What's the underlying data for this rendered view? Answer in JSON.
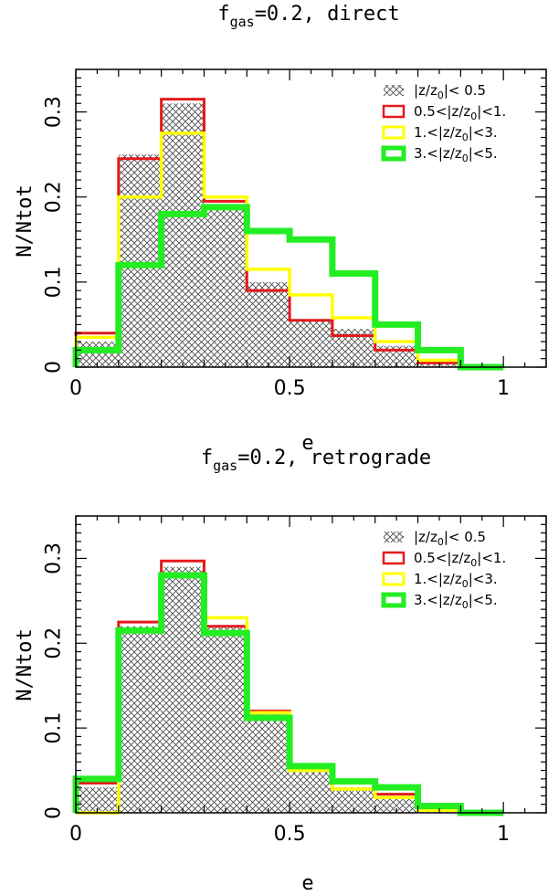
{
  "chart_data": [
    {
      "type": "histogram",
      "title": {
        "prefix": "f",
        "sub": "gas",
        "suffix": "=0.2, direct"
      },
      "xlabel": "e",
      "ylabel": "N/Ntot",
      "xlim": [
        0,
        1.1
      ],
      "ylim": [
        0,
        0.35
      ],
      "xticks": [
        {
          "value": 0,
          "label": "0"
        },
        {
          "value": 0.5,
          "label": "0.5"
        },
        {
          "value": 1,
          "label": "1"
        }
      ],
      "yticks": [
        {
          "value": 0,
          "label": "0"
        },
        {
          "value": 0.1,
          "label": "0.1"
        },
        {
          "value": 0.2,
          "label": "0.2"
        },
        {
          "value": 0.3,
          "label": "0.3"
        }
      ],
      "bin_edges": [
        0,
        0.1,
        0.2,
        0.3,
        0.4,
        0.5,
        0.6,
        0.7,
        0.8,
        0.9,
        1.0
      ],
      "series": [
        {
          "name": "|z/z0|< 0.5",
          "style": "hatched",
          "color": "#555555",
          "values": [
            0.03,
            0.25,
            0.31,
            0.19,
            0.1,
            0.055,
            0.045,
            0.025,
            0.005,
            0.0
          ]
        },
        {
          "name": "0.5<|z/z0|<1.",
          "style": "step",
          "color": "#e31a1c",
          "values": [
            0.04,
            0.245,
            0.315,
            0.195,
            0.09,
            0.055,
            0.037,
            0.02,
            0.005,
            0.0
          ]
        },
        {
          "name": "1.<|z/z0|<3.",
          "style": "step",
          "color": "#ffff00",
          "values": [
            0.035,
            0.2,
            0.275,
            0.2,
            0.115,
            0.085,
            0.058,
            0.03,
            0.008,
            0.0
          ]
        },
        {
          "name": "3.<|z/z0|<5.",
          "style": "step",
          "color": "#22ee22",
          "values": [
            0.02,
            0.12,
            0.18,
            0.188,
            0.16,
            0.15,
            0.11,
            0.05,
            0.02,
            0.0
          ]
        }
      ],
      "legend": {
        "position": "top-right",
        "items": [
          {
            "pre": "|z/z",
            "sub": "0",
            "post": "|< 0.5"
          },
          {
            "pre": "0.5<|z/z",
            "sub": "0",
            "post": "|<1."
          },
          {
            "pre": "1.<|z/z",
            "sub": "0",
            "post": "|<3."
          },
          {
            "pre": "3.<|z/z",
            "sub": "0",
            "post": "|<5."
          }
        ]
      }
    },
    {
      "type": "histogram",
      "title": {
        "prefix": "f",
        "sub": "gas",
        "suffix": "=0.2, retrograde"
      },
      "xlabel": "e",
      "ylabel": "N/Ntot",
      "xlim": [
        0,
        1.1
      ],
      "ylim": [
        0,
        0.35
      ],
      "xticks": [
        {
          "value": 0,
          "label": "0"
        },
        {
          "value": 0.5,
          "label": "0.5"
        },
        {
          "value": 1,
          "label": "1"
        }
      ],
      "yticks": [
        {
          "value": 0,
          "label": "0"
        },
        {
          "value": 0.1,
          "label": "0.1"
        },
        {
          "value": 0.2,
          "label": "0.2"
        },
        {
          "value": 0.3,
          "label": "0.3"
        }
      ],
      "bin_edges": [
        0,
        0.1,
        0.2,
        0.3,
        0.4,
        0.5,
        0.6,
        0.7,
        0.8,
        0.9,
        1.0
      ],
      "series": [
        {
          "name": "|z/z0|< 0.5",
          "style": "hatched",
          "color": "#555555",
          "values": [
            0.03,
            0.22,
            0.29,
            0.22,
            0.12,
            0.05,
            0.03,
            0.02,
            0.005,
            0.0
          ]
        },
        {
          "name": "0.5<|z/z0|<1.",
          "style": "step",
          "color": "#e31a1c",
          "values": [
            0.035,
            0.225,
            0.297,
            0.22,
            0.12,
            0.055,
            0.035,
            0.022,
            0.005,
            0.0
          ]
        },
        {
          "name": "1.<|z/z0|<3.",
          "style": "step",
          "color": "#ffff00",
          "values": [
            0.0,
            0.215,
            0.28,
            0.23,
            0.118,
            0.05,
            0.028,
            0.018,
            0.003,
            0.0
          ]
        },
        {
          "name": "3.<|z/z0|<5.",
          "style": "step",
          "color": "#22ee22",
          "values": [
            0.04,
            0.215,
            0.28,
            0.212,
            0.112,
            0.055,
            0.037,
            0.03,
            0.008,
            0.0
          ]
        }
      ],
      "legend": {
        "position": "top-right",
        "items": [
          {
            "pre": "|z/z",
            "sub": "0",
            "post": "|< 0.5"
          },
          {
            "pre": "0.5<|z/z",
            "sub": "0",
            "post": "|<1."
          },
          {
            "pre": "1.<|z/z",
            "sub": "0",
            "post": "|<3."
          },
          {
            "pre": "3.<|z/z",
            "sub": "0",
            "post": "|<5."
          }
        ]
      }
    }
  ]
}
